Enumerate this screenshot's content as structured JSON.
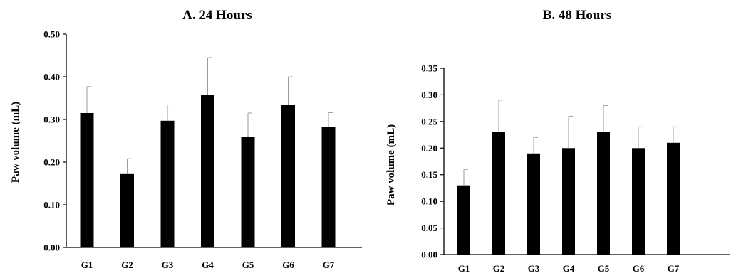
{
  "chart_data": [
    {
      "type": "bar",
      "title": "A.  24 Hours",
      "xlabel": "",
      "ylabel": "Paw volume (mL)",
      "ylim": [
        0,
        0.5
      ],
      "yticks": [
        "0.00",
        "0.10",
        "0.20",
        "0.30",
        "0.40",
        "0.50"
      ],
      "categories": [
        "G1",
        "G2",
        "G3",
        "G4",
        "G5",
        "G6",
        "G7"
      ],
      "values": [
        0.315,
        0.172,
        0.297,
        0.358,
        0.26,
        0.335,
        0.283
      ],
      "errors": [
        0.062,
        0.036,
        0.037,
        0.087,
        0.055,
        0.065,
        0.033
      ],
      "bar_color": "#000000",
      "grid": false,
      "legend": "none"
    },
    {
      "type": "bar",
      "title": "B. 48 Hours",
      "xlabel": "",
      "ylabel": "Paw volume (mL)",
      "ylim": [
        0,
        0.35
      ],
      "yticks": [
        "0.00",
        "0.05",
        "0.10",
        "0.15",
        "0.20",
        "0.25",
        "0.30",
        "0.35"
      ],
      "categories": [
        "G1",
        "G2",
        "G3",
        "G4",
        "G5",
        "G6",
        "G7"
      ],
      "values": [
        0.13,
        0.23,
        0.19,
        0.2,
        0.23,
        0.2,
        0.21
      ],
      "errors": [
        0.03,
        0.06,
        0.03,
        0.06,
        0.05,
        0.04,
        0.03
      ],
      "bar_color": "#000000",
      "grid": false,
      "legend": "none"
    }
  ]
}
